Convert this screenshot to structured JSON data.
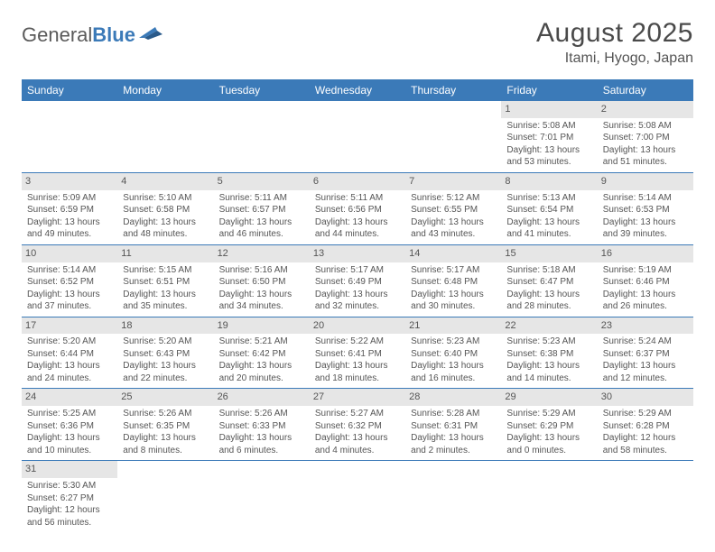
{
  "brand": {
    "text1": "General",
    "text2": "Blue"
  },
  "title": "August 2025",
  "location": "Itami, Hyogo, Japan",
  "colors": {
    "header_bg": "#3b7ab8",
    "daynum_bg": "#e6e6e6",
    "border": "#3b7ab8",
    "text": "#555555",
    "title": "#4a4a4a"
  },
  "day_headers": [
    "Sunday",
    "Monday",
    "Tuesday",
    "Wednesday",
    "Thursday",
    "Friday",
    "Saturday"
  ],
  "weeks": [
    [
      null,
      null,
      null,
      null,
      null,
      {
        "d": "1",
        "sr": "5:08 AM",
        "ss": "7:01 PM",
        "dl": "13 hours and 53 minutes."
      },
      {
        "d": "2",
        "sr": "5:08 AM",
        "ss": "7:00 PM",
        "dl": "13 hours and 51 minutes."
      }
    ],
    [
      {
        "d": "3",
        "sr": "5:09 AM",
        "ss": "6:59 PM",
        "dl": "13 hours and 49 minutes."
      },
      {
        "d": "4",
        "sr": "5:10 AM",
        "ss": "6:58 PM",
        "dl": "13 hours and 48 minutes."
      },
      {
        "d": "5",
        "sr": "5:11 AM",
        "ss": "6:57 PM",
        "dl": "13 hours and 46 minutes."
      },
      {
        "d": "6",
        "sr": "5:11 AM",
        "ss": "6:56 PM",
        "dl": "13 hours and 44 minutes."
      },
      {
        "d": "7",
        "sr": "5:12 AM",
        "ss": "6:55 PM",
        "dl": "13 hours and 43 minutes."
      },
      {
        "d": "8",
        "sr": "5:13 AM",
        "ss": "6:54 PM",
        "dl": "13 hours and 41 minutes."
      },
      {
        "d": "9",
        "sr": "5:14 AM",
        "ss": "6:53 PM",
        "dl": "13 hours and 39 minutes."
      }
    ],
    [
      {
        "d": "10",
        "sr": "5:14 AM",
        "ss": "6:52 PM",
        "dl": "13 hours and 37 minutes."
      },
      {
        "d": "11",
        "sr": "5:15 AM",
        "ss": "6:51 PM",
        "dl": "13 hours and 35 minutes."
      },
      {
        "d": "12",
        "sr": "5:16 AM",
        "ss": "6:50 PM",
        "dl": "13 hours and 34 minutes."
      },
      {
        "d": "13",
        "sr": "5:17 AM",
        "ss": "6:49 PM",
        "dl": "13 hours and 32 minutes."
      },
      {
        "d": "14",
        "sr": "5:17 AM",
        "ss": "6:48 PM",
        "dl": "13 hours and 30 minutes."
      },
      {
        "d": "15",
        "sr": "5:18 AM",
        "ss": "6:47 PM",
        "dl": "13 hours and 28 minutes."
      },
      {
        "d": "16",
        "sr": "5:19 AM",
        "ss": "6:46 PM",
        "dl": "13 hours and 26 minutes."
      }
    ],
    [
      {
        "d": "17",
        "sr": "5:20 AM",
        "ss": "6:44 PM",
        "dl": "13 hours and 24 minutes."
      },
      {
        "d": "18",
        "sr": "5:20 AM",
        "ss": "6:43 PM",
        "dl": "13 hours and 22 minutes."
      },
      {
        "d": "19",
        "sr": "5:21 AM",
        "ss": "6:42 PM",
        "dl": "13 hours and 20 minutes."
      },
      {
        "d": "20",
        "sr": "5:22 AM",
        "ss": "6:41 PM",
        "dl": "13 hours and 18 minutes."
      },
      {
        "d": "21",
        "sr": "5:23 AM",
        "ss": "6:40 PM",
        "dl": "13 hours and 16 minutes."
      },
      {
        "d": "22",
        "sr": "5:23 AM",
        "ss": "6:38 PM",
        "dl": "13 hours and 14 minutes."
      },
      {
        "d": "23",
        "sr": "5:24 AM",
        "ss": "6:37 PM",
        "dl": "13 hours and 12 minutes."
      }
    ],
    [
      {
        "d": "24",
        "sr": "5:25 AM",
        "ss": "6:36 PM",
        "dl": "13 hours and 10 minutes."
      },
      {
        "d": "25",
        "sr": "5:26 AM",
        "ss": "6:35 PM",
        "dl": "13 hours and 8 minutes."
      },
      {
        "d": "26",
        "sr": "5:26 AM",
        "ss": "6:33 PM",
        "dl": "13 hours and 6 minutes."
      },
      {
        "d": "27",
        "sr": "5:27 AM",
        "ss": "6:32 PM",
        "dl": "13 hours and 4 minutes."
      },
      {
        "d": "28",
        "sr": "5:28 AM",
        "ss": "6:31 PM",
        "dl": "13 hours and 2 minutes."
      },
      {
        "d": "29",
        "sr": "5:29 AM",
        "ss": "6:29 PM",
        "dl": "13 hours and 0 minutes."
      },
      {
        "d": "30",
        "sr": "5:29 AM",
        "ss": "6:28 PM",
        "dl": "12 hours and 58 minutes."
      }
    ],
    [
      {
        "d": "31",
        "sr": "5:30 AM",
        "ss": "6:27 PM",
        "dl": "12 hours and 56 minutes."
      },
      null,
      null,
      null,
      null,
      null,
      null
    ]
  ],
  "labels": {
    "sunrise": "Sunrise:",
    "sunset": "Sunset:",
    "daylight": "Daylight:"
  }
}
